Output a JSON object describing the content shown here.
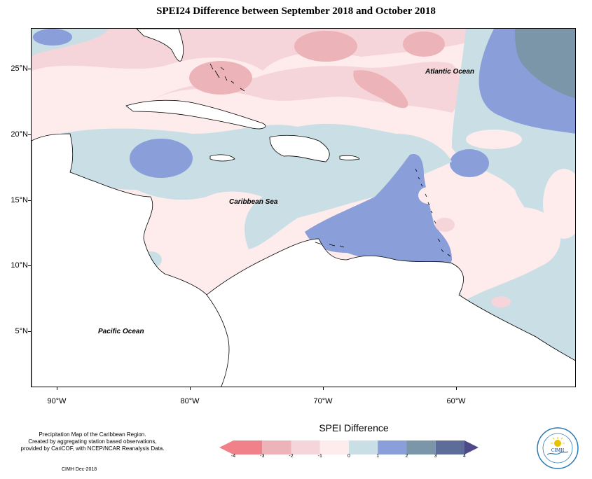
{
  "title": "SPEI24 Difference between September 2018 and October 2018",
  "map": {
    "latitude_labels": [
      "25°N",
      "20°N",
      "15°N",
      "10°N",
      "5°N"
    ],
    "longitude_labels": [
      "90°W",
      "80°W",
      "70°W",
      "60°W"
    ],
    "place_labels": {
      "atlantic": "Atlantic Ocean",
      "caribbean": "Caribbean Sea",
      "pacific": "Pacific Ocean"
    }
  },
  "legend": {
    "title": "SPEI Difference",
    "tick_labels": [
      "-4",
      "-3",
      "-2",
      "-1",
      "0",
      "1",
      "2",
      "3",
      "4"
    ],
    "class_colors": [
      "#f0808a",
      "#ecb3b8",
      "#f6d5da",
      "#fdeceb",
      "#c9dfe5",
      "#8a9ed9",
      "#7b96a8",
      "#5e6c99"
    ],
    "arrow_colors": {
      "low": "#f0808a",
      "high": "#4e4a8a"
    }
  },
  "credits": {
    "line1": "Precipitation Map of the Caribbean Region.",
    "line2": "Created by aggregating station based observations,",
    "line3": "provided by CariCOF, with NCEP/NCAR Reanalysis Data.",
    "date": "CIMH Dec-2018"
  },
  "logo": {
    "name": "CIMH",
    "sun_color": "#e8c300",
    "ring_color": "#2a7ab0"
  },
  "chart_data": {
    "type": "heatmap",
    "title": "SPEI24 Difference between September 2018 and October 2018",
    "variable": "SPEI Difference",
    "region": "Caribbean",
    "lon_range": [
      -92,
      -52
    ],
    "lat_range": [
      1,
      28
    ],
    "lat_ticks": [
      25,
      20,
      15,
      10,
      5
    ],
    "lon_ticks": [
      -90,
      -80,
      -70,
      -60
    ],
    "color_scale": {
      "breaks": [
        -4,
        -3,
        -2,
        -1,
        0,
        1,
        2,
        3,
        4
      ],
      "colors": [
        "#f0808a",
        "#ecb3b8",
        "#f6d5da",
        "#fdeceb",
        "#c9dfe5",
        "#8a9ed9",
        "#7b96a8",
        "#5e6c99"
      ]
    },
    "annotations": [
      "Atlantic Ocean",
      "Caribbean Sea",
      "Pacific Ocean"
    ]
  }
}
